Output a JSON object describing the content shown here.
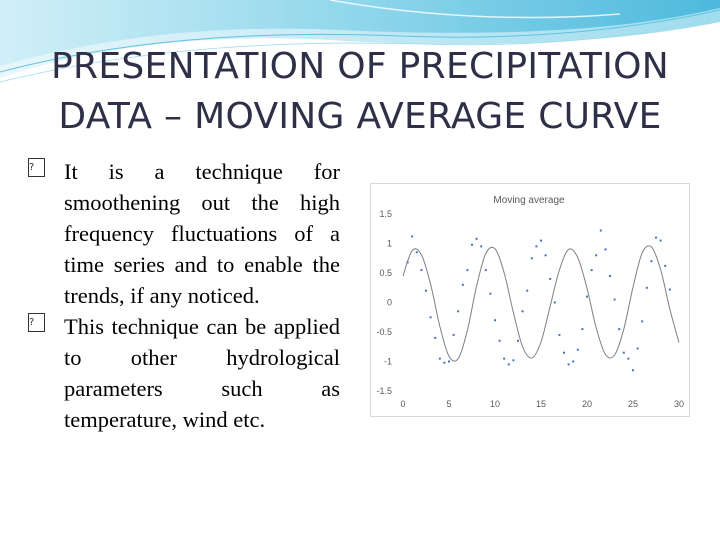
{
  "slide": {
    "title_lines": [
      "PRESENTATION OF PRECIPITATION",
      "DATA – MOVING AVERAGE CURVE"
    ],
    "bullets": [
      {
        "lead": "It is a technique for",
        "rest": "smoothening out the high frequency fluctuations of a time series and to enable the trends, if any noticed."
      },
      {
        "lead": "This technique can be",
        "rest": "applied to other hydrological parameters such as temperature, wind etc."
      }
    ],
    "bullet_icon": "box-bullet-icon",
    "accent_color": "#7fd0e8"
  },
  "chart_data": {
    "type": "scatter",
    "title": "Moving average",
    "xlabel": "",
    "ylabel": "",
    "xlim": [
      0,
      30
    ],
    "ylim": [
      -1.5,
      1.5
    ],
    "x_ticks": [
      "0",
      "5",
      "10",
      "15",
      "20",
      "25",
      "30"
    ],
    "y_ticks": [
      "1.5",
      "1",
      "0.5",
      "0",
      "-0.5",
      "-1",
      "-1.5"
    ],
    "grid": false,
    "series": [
      {
        "role": "points",
        "x": [
          0.5,
          1.0,
          1.5,
          2.0,
          2.5,
          3.0,
          3.5,
          4.0,
          4.5,
          5.0,
          5.5,
          6.0,
          6.5,
          7.0,
          7.5,
          8.0,
          8.5,
          9.0,
          9.5,
          10.0,
          10.5,
          11.0,
          11.5,
          12.0,
          12.5,
          13.0,
          13.5,
          14.0,
          14.5,
          15.0,
          15.5,
          16.0,
          16.5,
          17.0,
          17.5,
          18.0,
          18.5,
          19.0,
          19.5,
          20.0,
          20.5,
          21.0,
          21.5,
          22.0,
          22.5,
          23.0,
          23.5,
          24.0,
          24.5,
          25.0,
          25.5,
          26.0,
          26.5,
          27.0,
          27.5,
          28.0,
          28.5,
          29.0
        ],
        "y": [
          0.68,
          1.12,
          0.85,
          0.55,
          0.2,
          -0.25,
          -0.6,
          -0.95,
          -1.02,
          -1.0,
          -0.55,
          -0.15,
          0.3,
          0.55,
          0.98,
          1.08,
          0.95,
          0.55,
          0.15,
          -0.3,
          -0.65,
          -0.95,
          -1.05,
          -0.98,
          -0.65,
          -0.15,
          0.2,
          0.75,
          0.95,
          1.05,
          0.8,
          0.4,
          0.0,
          -0.55,
          -0.85,
          -1.05,
          -1.0,
          -0.8,
          -0.45,
          0.1,
          0.55,
          0.8,
          1.22,
          0.9,
          0.45,
          0.05,
          -0.45,
          -0.85,
          -0.95,
          -1.15,
          -0.78,
          -0.32,
          0.25,
          0.7,
          1.1,
          1.05,
          0.62,
          0.22
        ]
      },
      {
        "role": "smoothed-line",
        "x": [
          0,
          1,
          2,
          3,
          4,
          5,
          6,
          7,
          8,
          9,
          10,
          11,
          12,
          13,
          14,
          15,
          16,
          17,
          18,
          19,
          20,
          21,
          22,
          23,
          24,
          25,
          26,
          27,
          28,
          29,
          30
        ],
        "y": [
          0.45,
          0.88,
          0.81,
          0.31,
          -0.4,
          -0.91,
          -0.95,
          -0.47,
          0.28,
          0.83,
          0.91,
          0.5,
          -0.17,
          -0.75,
          -0.94,
          -0.67,
          -0.06,
          0.55,
          0.9,
          0.76,
          0.24,
          -0.43,
          -0.88,
          -0.89,
          -0.45,
          0.26,
          0.84,
          0.94,
          0.56,
          -0.11,
          -0.68
        ]
      }
    ]
  }
}
